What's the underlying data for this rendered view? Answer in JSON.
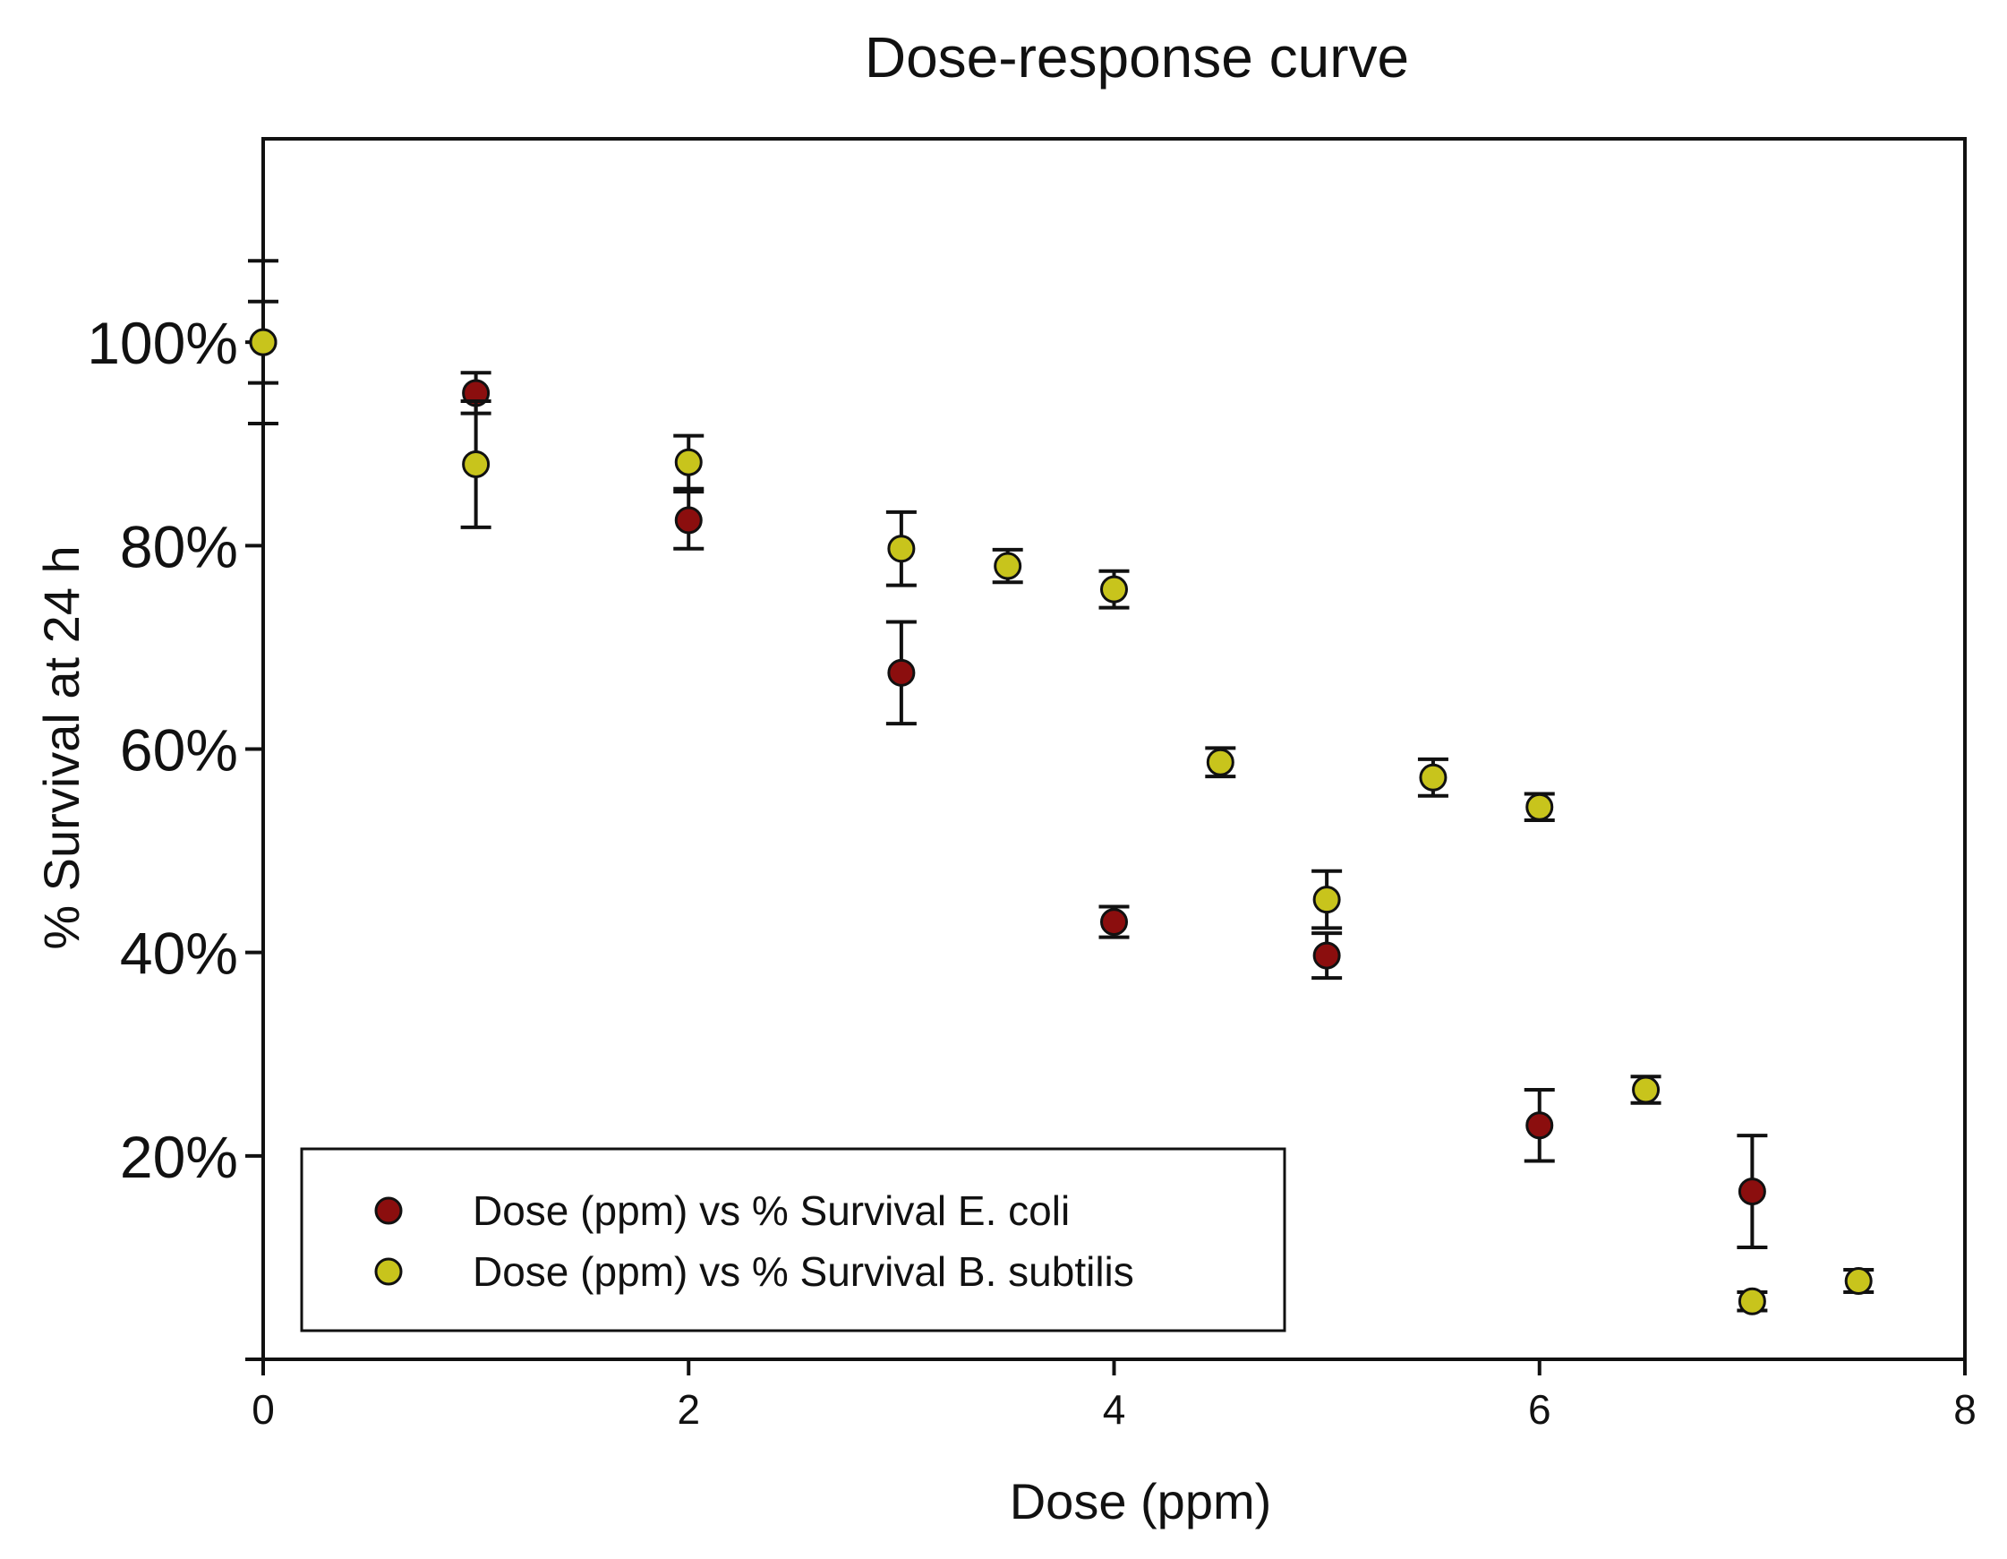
{
  "chart_data": {
    "type": "scatter",
    "title": "Dose-response curve",
    "xlabel": "Dose (ppm)",
    "ylabel": "% Survival at 24 h",
    "xlim": [
      0,
      8
    ],
    "ylim": [
      0,
      1.2
    ],
    "x_ticks": [
      0,
      2,
      4,
      6,
      8
    ],
    "x_tick_labels": [
      "0",
      "2",
      "4",
      "6",
      "8"
    ],
    "y_ticks": [
      0.2,
      0.4,
      0.6,
      0.8,
      1.0
    ],
    "y_tick_labels": [
      "20%",
      "40%",
      "60%",
      "80%",
      "100%"
    ],
    "grid": false,
    "legend_position": "bottom-left",
    "series": [
      {
        "name": "Dose (ppm) vs % Survival E. coli",
        "color": "#8b0e0e",
        "points": [
          {
            "x": 0,
            "y": 1.0,
            "err": 0.04
          },
          {
            "x": 1,
            "y": 0.95,
            "err": 0.02
          },
          {
            "x": 2,
            "y": 0.825,
            "err": 0.028
          },
          {
            "x": 3,
            "y": 0.675,
            "err": 0.05
          },
          {
            "x": 4,
            "y": 0.43,
            "err": 0.015
          },
          {
            "x": 5,
            "y": 0.397,
            "err": 0.022
          },
          {
            "x": 6,
            "y": 0.23,
            "err": 0.035
          },
          {
            "x": 7,
            "y": 0.165,
            "err": 0.055
          }
        ]
      },
      {
        "name": "Dose (ppm) vs % Survival B. subtilis",
        "color": "#c8c41c",
        "points": [
          {
            "x": 0,
            "y": 1.0,
            "err": 0.08
          },
          {
            "x": 1,
            "y": 0.88,
            "err": 0.062
          },
          {
            "x": 2,
            "y": 0.882,
            "err": 0.026
          },
          {
            "x": 3,
            "y": 0.797,
            "err": 0.036
          },
          {
            "x": 3.5,
            "y": 0.78,
            "err": 0.016
          },
          {
            "x": 4,
            "y": 0.757,
            "err": 0.018
          },
          {
            "x": 4.5,
            "y": 0.587,
            "err": 0.014
          },
          {
            "x": 5,
            "y": 0.452,
            "err": 0.028
          },
          {
            "x": 5.5,
            "y": 0.572,
            "err": 0.018
          },
          {
            "x": 6,
            "y": 0.543,
            "err": 0.013
          },
          {
            "x": 6.5,
            "y": 0.265,
            "err": 0.013
          },
          {
            "x": 7,
            "y": 0.057,
            "err": 0.009
          },
          {
            "x": 7.5,
            "y": 0.077,
            "err": 0.011
          }
        ]
      }
    ]
  }
}
